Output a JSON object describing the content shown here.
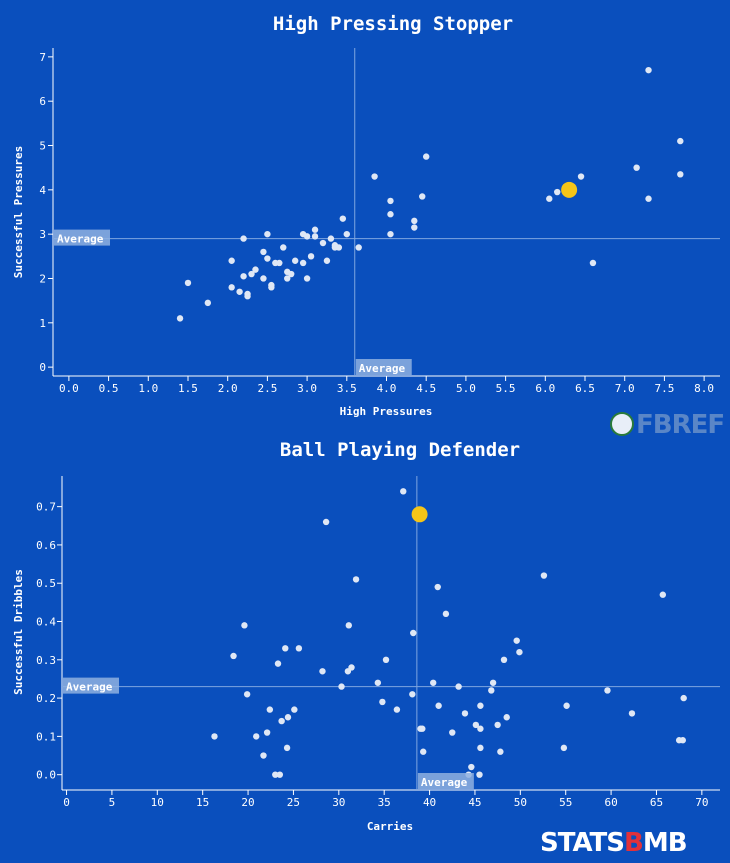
{
  "logos": {
    "fbref": "FBREF",
    "statsbomb_1": "STATS",
    "statsbomb_2": "B",
    "statsbomb_3": "MB"
  },
  "colors": {
    "background": "#0a4fbd",
    "point": "#dfe7f5",
    "highlight": "#f5c518",
    "avg_line": "#7fa6e0",
    "avg_label_bg": "#8fb0e0"
  },
  "chart_data": [
    {
      "type": "scatter",
      "title": "High Pressing Stopper",
      "xlabel": "High Pressures",
      "ylabel": "Successful Pressures",
      "xlim": [
        -0.2,
        8.2
      ],
      "ylim": [
        -0.2,
        7.2
      ],
      "xticks": [
        "0.0",
        "0.5",
        "1.0",
        "1.5",
        "2.0",
        "2.5",
        "3.0",
        "3.5",
        "4.0",
        "4.5",
        "5.0",
        "5.5",
        "6.0",
        "6.5",
        "7.0",
        "7.5",
        "8.0"
      ],
      "yticks": [
        "0",
        "1",
        "2",
        "3",
        "4",
        "5",
        "6",
        "7"
      ],
      "avg_x": 3.6,
      "avg_y": 2.9,
      "avg_label": "Average",
      "highlight": {
        "x": 6.3,
        "y": 4.0
      },
      "points": [
        [
          1.4,
          1.1
        ],
        [
          1.5,
          1.9
        ],
        [
          1.75,
          1.45
        ],
        [
          2.05,
          1.8
        ],
        [
          2.05,
          2.4
        ],
        [
          2.15,
          1.7
        ],
        [
          2.2,
          2.9
        ],
        [
          2.2,
          2.05
        ],
        [
          2.25,
          1.6
        ],
        [
          2.25,
          1.65
        ],
        [
          2.3,
          2.1
        ],
        [
          2.35,
          2.2
        ],
        [
          2.45,
          2.6
        ],
        [
          2.45,
          2.0
        ],
        [
          2.5,
          2.45
        ],
        [
          2.5,
          3.0
        ],
        [
          2.55,
          1.8
        ],
        [
          2.55,
          1.85
        ],
        [
          2.6,
          2.35
        ],
        [
          2.65,
          2.35
        ],
        [
          2.7,
          2.7
        ],
        [
          2.75,
          2.0
        ],
        [
          2.75,
          2.15
        ],
        [
          2.8,
          2.1
        ],
        [
          2.85,
          2.4
        ],
        [
          2.95,
          3.0
        ],
        [
          2.95,
          2.35
        ],
        [
          3.0,
          2.95
        ],
        [
          3.0,
          2.0
        ],
        [
          3.05,
          2.5
        ],
        [
          3.1,
          3.1
        ],
        [
          3.1,
          2.95
        ],
        [
          3.2,
          2.8
        ],
        [
          3.25,
          2.4
        ],
        [
          3.3,
          2.9
        ],
        [
          3.35,
          2.75
        ],
        [
          3.35,
          2.7
        ],
        [
          3.4,
          2.7
        ],
        [
          3.45,
          3.35
        ],
        [
          3.5,
          3.0
        ],
        [
          3.65,
          2.7
        ],
        [
          3.85,
          4.3
        ],
        [
          4.05,
          3.75
        ],
        [
          4.05,
          3.45
        ],
        [
          4.05,
          3.0
        ],
        [
          4.35,
          3.3
        ],
        [
          4.35,
          3.15
        ],
        [
          4.45,
          3.85
        ],
        [
          4.5,
          4.75
        ],
        [
          6.05,
          3.8
        ],
        [
          6.15,
          3.95
        ],
        [
          6.45,
          4.3
        ],
        [
          6.6,
          2.35
        ],
        [
          7.15,
          4.5
        ],
        [
          7.3,
          6.7
        ],
        [
          7.3,
          3.8
        ],
        [
          7.7,
          5.1
        ],
        [
          7.7,
          4.35
        ]
      ]
    },
    {
      "type": "scatter",
      "title": "Ball Playing Defender",
      "xlabel": "Carries",
      "ylabel": "Successful Dribbles",
      "xlim": [
        -0.5,
        72
      ],
      "ylim": [
        -0.04,
        0.78
      ],
      "xticks": [
        "0",
        "5",
        "10",
        "15",
        "20",
        "25",
        "30",
        "35",
        "40",
        "45",
        "50",
        "55",
        "60",
        "65",
        "70"
      ],
      "yticks": [
        "0.0",
        "0.1",
        "0.2",
        "0.3",
        "0.4",
        "0.5",
        "0.6",
        "0.7"
      ],
      "avg_x": 38.6,
      "avg_y": 0.23,
      "avg_label": "Average",
      "highlight": {
        "x": 38.9,
        "y": 0.68
      },
      "points": [
        [
          16.3,
          0.1
        ],
        [
          18.4,
          0.31
        ],
        [
          19.6,
          0.39
        ],
        [
          19.9,
          0.21
        ],
        [
          20.9,
          0.1
        ],
        [
          21.7,
          0.05
        ],
        [
          22.1,
          0.11
        ],
        [
          22.4,
          0.17
        ],
        [
          23.0,
          0.0
        ],
        [
          23.3,
          0.29
        ],
        [
          23.7,
          0.14
        ],
        [
          23.5,
          0.0
        ],
        [
          24.1,
          0.33
        ],
        [
          24.3,
          0.07
        ],
        [
          24.4,
          0.15
        ],
        [
          25.1,
          0.17
        ],
        [
          25.6,
          0.33
        ],
        [
          28.2,
          0.27
        ],
        [
          28.6,
          0.66
        ],
        [
          30.3,
          0.23
        ],
        [
          31.0,
          0.27
        ],
        [
          31.1,
          0.39
        ],
        [
          31.4,
          0.28
        ],
        [
          31.9,
          0.51
        ],
        [
          34.3,
          0.24
        ],
        [
          34.8,
          0.19
        ],
        [
          35.2,
          0.3
        ],
        [
          36.4,
          0.17
        ],
        [
          37.1,
          0.74
        ],
        [
          38.1,
          0.21
        ],
        [
          38.2,
          0.37
        ],
        [
          39.0,
          0.12
        ],
        [
          39.2,
          0.12
        ],
        [
          39.3,
          0.06
        ],
        [
          40.4,
          0.24
        ],
        [
          40.9,
          0.49
        ],
        [
          41.0,
          0.18
        ],
        [
          41.8,
          0.42
        ],
        [
          42.5,
          0.11
        ],
        [
          43.2,
          0.23
        ],
        [
          43.9,
          0.16
        ],
        [
          44.3,
          0.0
        ],
        [
          44.6,
          0.02
        ],
        [
          45.1,
          0.13
        ],
        [
          45.5,
          0.0
        ],
        [
          45.6,
          0.18
        ],
        [
          45.6,
          0.12
        ],
        [
          45.6,
          0.07
        ],
        [
          46.8,
          0.22
        ],
        [
          47.0,
          0.24
        ],
        [
          47.5,
          0.13
        ],
        [
          47.8,
          0.06
        ],
        [
          48.2,
          0.3
        ],
        [
          48.5,
          0.15
        ],
        [
          49.6,
          0.35
        ],
        [
          49.9,
          0.32
        ],
        [
          52.6,
          0.52
        ],
        [
          54.8,
          0.07
        ],
        [
          55.1,
          0.18
        ],
        [
          59.6,
          0.22
        ],
        [
          62.3,
          0.16
        ],
        [
          65.7,
          0.47
        ],
        [
          67.5,
          0.09
        ],
        [
          67.9,
          0.09
        ],
        [
          68.0,
          0.2
        ]
      ]
    }
  ]
}
